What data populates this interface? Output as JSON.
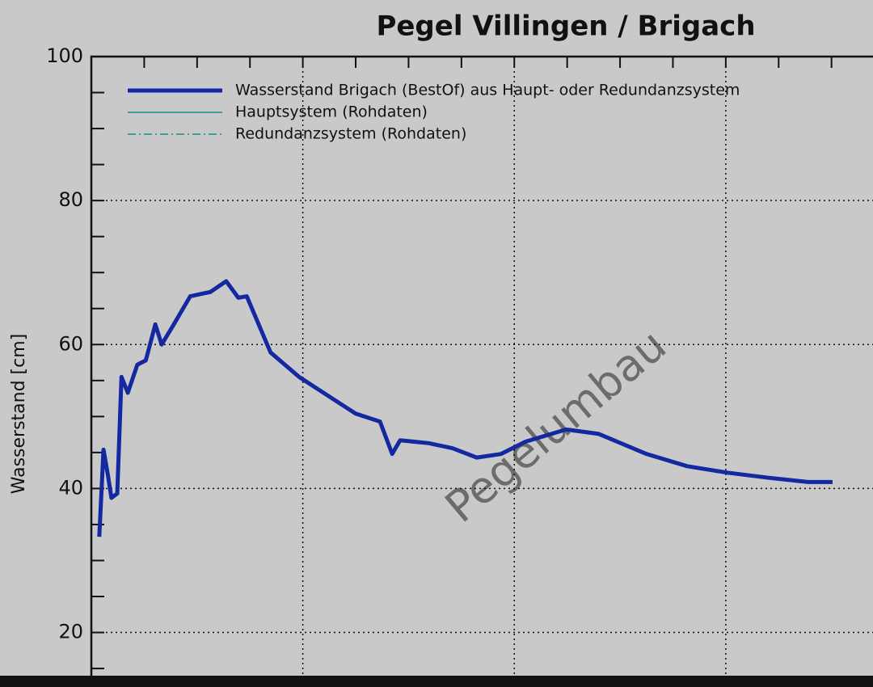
{
  "chart_data": {
    "type": "line",
    "title": "Pegel Villingen / Brigach",
    "y_label": "Wasserstand [cm]",
    "annotation": "Pegelumbau",
    "x": [
      0.15,
      0.23,
      0.31,
      0.38,
      0.49,
      0.57,
      0.69,
      0.87,
      1.03,
      1.21,
      1.33,
      1.56,
      1.87,
      2.25,
      2.55,
      2.78,
      2.94,
      3.39,
      3.93,
      4.39,
      5.0,
      5.46,
      5.69,
      5.84,
      6.38,
      6.83,
      7.29,
      7.75,
      8.21,
      8.98,
      9.59,
      10.5,
      11.27,
      12.03,
      12.8,
      13.56,
      14.02
    ],
    "series": [
      {
        "name": "Wasserstand Brigach (BestOf)  aus Haupt- oder Redundanzsystem",
        "color": "#1428a0",
        "width": 5,
        "dash": "none",
        "values": [
          33.3,
          45.4,
          42.0,
          38.7,
          39.3,
          55.5,
          53.3,
          57.2,
          57.8,
          62.8,
          60.0,
          62.8,
          66.7,
          67.3,
          68.8,
          66.5,
          66.7,
          58.9,
          55.5,
          53.3,
          50.4,
          49.3,
          44.8,
          46.7,
          46.3,
          45.6,
          44.3,
          44.8,
          46.5,
          48.2,
          47.6,
          44.8,
          43.1,
          42.2,
          41.5,
          40.9,
          40.9
        ]
      },
      {
        "name": "Hauptsystem (Rohdaten)",
        "color": "#1a8a8a",
        "width": 1.5,
        "dash": "none",
        "values": [
          null,
          null,
          null,
          null,
          null,
          null,
          null,
          null,
          null,
          null,
          null,
          null,
          null,
          null,
          null,
          null,
          null,
          null,
          null,
          null,
          null,
          null,
          null,
          null,
          null,
          null,
          null,
          null,
          null,
          null,
          null,
          null,
          null,
          null,
          null,
          null,
          null
        ]
      },
      {
        "name": "Redundanzsystem (Rohdaten)",
        "color": "#1a8a8a",
        "width": 1.5,
        "dash": "10 4 2 4",
        "values": [
          null,
          null,
          null,
          null,
          null,
          null,
          null,
          null,
          null,
          null,
          null,
          null,
          null,
          null,
          null,
          null,
          null,
          null,
          null,
          null,
          null,
          null,
          null,
          null,
          null,
          null,
          null,
          null,
          null,
          null,
          null,
          null,
          null,
          null,
          null,
          null,
          null
        ]
      }
    ],
    "xlim": [
      0,
      14.8
    ],
    "xticks": [
      4,
      8,
      12
    ],
    "xticks_minor": [
      1,
      2,
      3,
      5,
      6,
      7,
      9,
      10,
      11,
      13,
      14
    ],
    "ylim": [
      14,
      100
    ],
    "yticks": [
      20,
      40,
      60,
      80,
      100
    ],
    "yticks_minor": [
      15,
      25,
      30,
      35,
      45,
      50,
      55,
      65,
      70,
      75,
      85,
      90,
      95
    ],
    "grid": true
  }
}
